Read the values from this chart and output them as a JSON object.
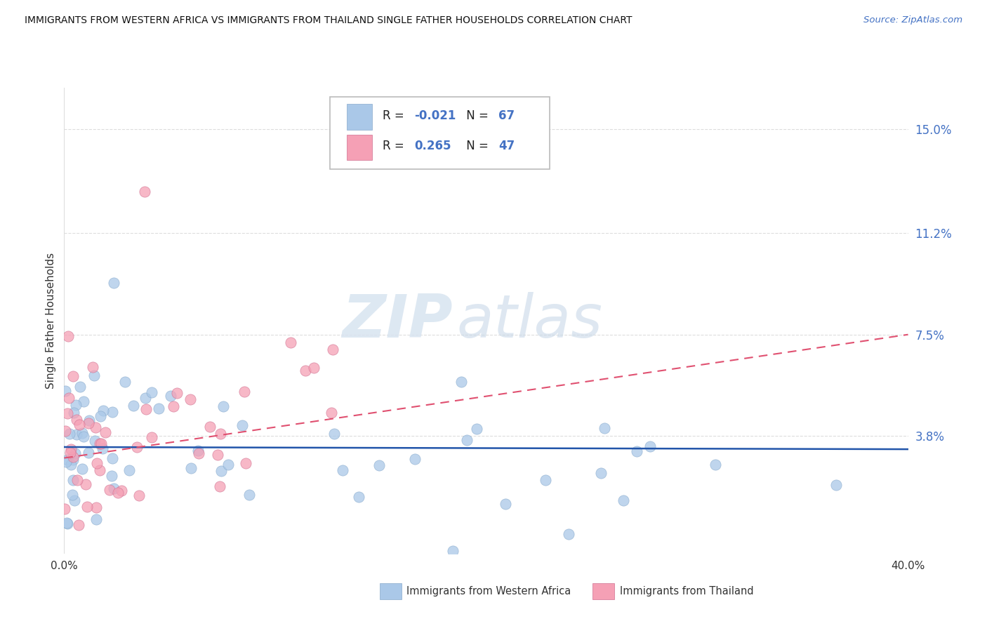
{
  "title": "IMMIGRANTS FROM WESTERN AFRICA VS IMMIGRANTS FROM THAILAND SINGLE FATHER HOUSEHOLDS CORRELATION CHART",
  "source": "Source: ZipAtlas.com",
  "ylabel": "Single Father Households",
  "y_ticks": [
    0.038,
    0.075,
    0.112,
    0.15
  ],
  "y_tick_labels": [
    "3.8%",
    "7.5%",
    "11.2%",
    "15.0%"
  ],
  "xlim": [
    0.0,
    0.4
  ],
  "ylim": [
    -0.005,
    0.165
  ],
  "watermark_zip": "ZIP",
  "watermark_atlas": "atlas",
  "series_wa": {
    "label": "Immigrants from Western Africa",
    "dot_color": "#aac8e8",
    "line_color": "#2255aa",
    "R": -0.021,
    "N": 67
  },
  "series_th": {
    "label": "Immigrants from Thailand",
    "dot_color": "#f5a0b5",
    "line_color": "#e05070",
    "R": 0.265,
    "N": 47
  },
  "legend_R1": "-0.021",
  "legend_N1": "67",
  "legend_R2": "0.265",
  "legend_N2": "47",
  "blue_color": "#4472c4",
  "pink_color": "#e05070",
  "text_color": "#333333",
  "grid_color": "#dddddd"
}
